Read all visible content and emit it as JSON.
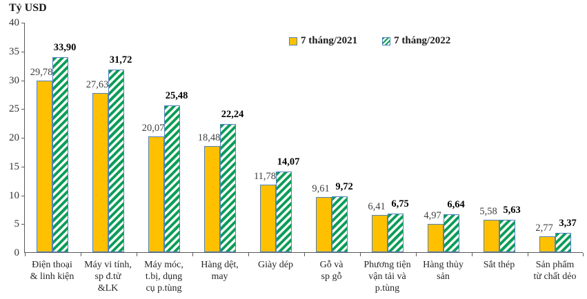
{
  "chart_data": {
    "type": "bar",
    "ylabel": "Tỷ USD",
    "ylim": [
      0,
      40
    ],
    "yticks": [
      0,
      5,
      10,
      15,
      20,
      25,
      30,
      35,
      40
    ],
    "grid": false,
    "legend_position": "top-center",
    "decimal_separator": ",",
    "categories": [
      [
        "Điện thoại",
        "& linh kiện"
      ],
      [
        "Máy vi tính,",
        "sp đ.tử",
        "&LK"
      ],
      [
        "Máy móc,",
        "t.bị, dụng",
        "cụ p.tùng"
      ],
      [
        "Hàng dệt,",
        "may"
      ],
      [
        "Giày dép"
      ],
      [
        "Gỗ và",
        "sp gỗ"
      ],
      [
        "Phương tiện",
        "vận tải và",
        "p.tùng"
      ],
      [
        "Hàng thủy",
        "sản"
      ],
      [
        "Sắt thép"
      ],
      [
        "Sản phẩm",
        "từ chất dẻo"
      ]
    ],
    "series": [
      {
        "name": "7 tháng/2021",
        "values": [
          29.78,
          27.63,
          20.07,
          18.48,
          11.78,
          9.61,
          6.41,
          4.97,
          5.58,
          2.77
        ],
        "labels": [
          "29,78",
          "27,63",
          "20,07",
          "18,48",
          "11,78",
          "9,61",
          "6,41",
          "4,97",
          "5,58",
          "2,77"
        ],
        "color": "#FFC000",
        "pattern": "solid"
      },
      {
        "name": "7 tháng/2022",
        "values": [
          33.9,
          31.72,
          25.48,
          22.24,
          14.07,
          9.72,
          6.75,
          6.64,
          5.63,
          3.37
        ],
        "labels": [
          "33,90",
          "31,72",
          "25,48",
          "22,24",
          "14,07",
          "9,72",
          "6,75",
          "6,64",
          "5,63",
          "3,37"
        ],
        "color": "#0C9E57",
        "pattern": "diagonal-hatch"
      }
    ],
    "colors": {
      "bar_border": "#4F81BD",
      "axis": "#595959",
      "value_label_2021": "#404040",
      "value_label_2022": "#000000"
    }
  }
}
